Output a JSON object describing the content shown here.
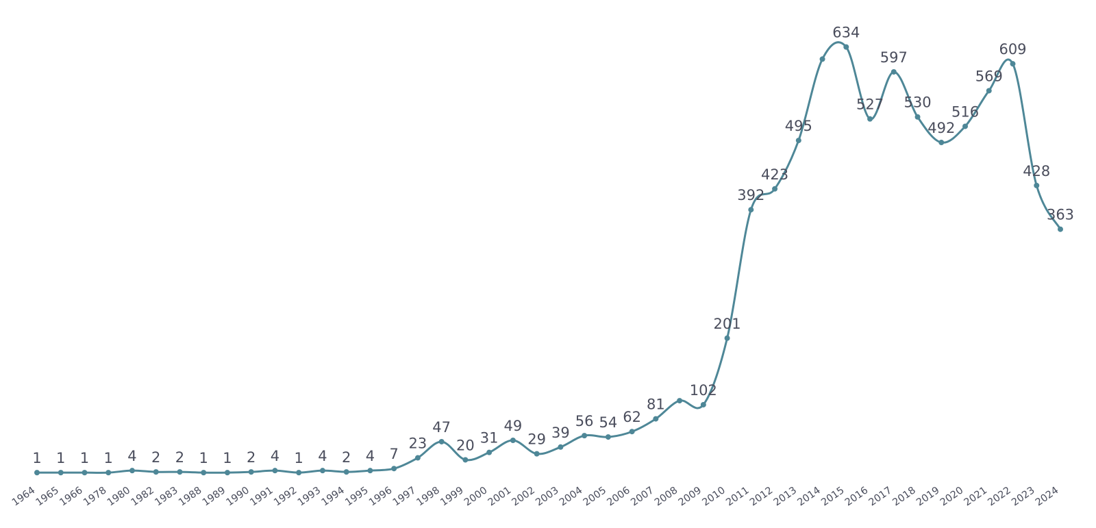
{
  "chart_data": {
    "type": "line",
    "title": "",
    "xlabel": "",
    "ylabel": "",
    "categories": [
      "1964",
      "1965",
      "1966",
      "1978",
      "1980",
      "1982",
      "1983",
      "1988",
      "1989",
      "1990",
      "1991",
      "1992",
      "1993",
      "1994",
      "1995",
      "1996",
      "1997",
      "1998",
      "1999",
      "2000",
      "2001",
      "2002",
      "2003",
      "2004",
      "2005",
      "2006",
      "2007",
      "2008",
      "2009",
      "2010",
      "2011",
      "2012",
      "2013",
      "2014",
      "2015",
      "2016",
      "2017",
      "2018",
      "2019",
      "2020",
      "2021",
      "2022",
      "2023",
      "2024"
    ],
    "values": [
      1,
      1,
      1,
      1,
      4,
      2,
      2,
      1,
      1,
      2,
      4,
      1,
      4,
      2,
      4,
      7,
      23,
      47,
      20,
      31,
      49,
      29,
      39,
      56,
      54,
      62,
      81,
      null,
      102,
      201,
      392,
      423,
      495,
      null,
      634,
      527,
      597,
      530,
      492,
      516,
      569,
      609,
      428,
      363
    ],
    "visible_values": [
      1,
      1,
      1,
      1,
      4,
      2,
      2,
      1,
      1,
      2,
      4,
      1,
      4,
      2,
      4,
      7,
      23,
      47,
      20,
      31,
      49,
      29,
      39,
      56,
      54,
      62,
      81,
      108,
      102,
      201,
      392,
      423,
      495,
      616,
      634,
      527,
      597,
      530,
      492,
      516,
      569,
      609,
      428,
      363
    ],
    "ylim": [
      0,
      660
    ],
    "grid": false,
    "legend": "none",
    "colors": {
      "line": "#4e8797",
      "marker": "#4e8797",
      "label": "#4a4d5c",
      "background": "#ffffff"
    }
  }
}
